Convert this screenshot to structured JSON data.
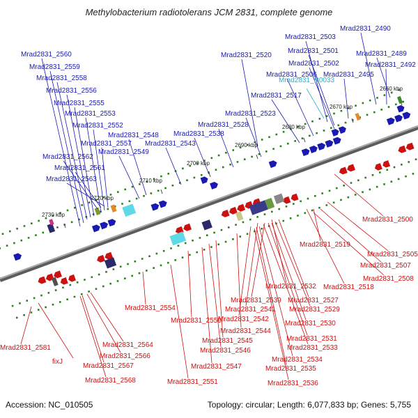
{
  "title": "Methylobacterium radiotolerans JCM 2831, complete genome",
  "footer": {
    "accession": "Accession: NC_010505",
    "summary": "Topology: circular; Length: 6,077,833 bp; Genes: 5,755"
  },
  "colors": {
    "backbone": "#7a7a7a",
    "forward": "#1a1ab0",
    "reverse": "#cc1111",
    "rna": "#2ab0d0",
    "gc_dots": "#2e7d1e"
  },
  "ticks": [
    "2660 kbp",
    "2670 kbp",
    "2680 kbp",
    "2690 kbp",
    "2700 kbp",
    "2710 kbp",
    "2720 kbp",
    "2730 kbp"
  ],
  "forward_labels": [
    "Mrad2831_2490",
    "Mrad2831_2503",
    "Mrad2831_2501",
    "Mrad2831_2489",
    "Mrad2831_2520",
    "Mrad2831_2502",
    "Mrad2831_2492",
    "Mrad2831_2506",
    "Mrad2831_2495",
    "Mrad2831_2517",
    "Mrad2831_2523",
    "Mrad2831_2528",
    "Mrad2831_2538",
    "Mrad2831_2543",
    "Mrad2831_2548",
    "Mrad2831_2549",
    "Mrad2831_2560",
    "Mrad2831_2559",
    "Mrad2831_2558",
    "Mrad2831_2556",
    "Mrad2831_2555",
    "Mrad2831_2553",
    "Mrad2831_2552",
    "Mrad2831_2557",
    "Mrad2831_2562",
    "Mrad2831_2561",
    "Mrad2831_2563"
  ],
  "rna_labels": [
    "Mrad2831_R0033"
  ],
  "reverse_labels": [
    "Mrad2831_2500",
    "Mrad2831_2519",
    "Mrad2831_2505",
    "Mrad2831_2507",
    "Mrad2831_2508",
    "Mrad2831_2518",
    "Mrad2831_2532",
    "Mrad2831_2539",
    "Mrad2831_2527",
    "Mrad2831_2541",
    "Mrad2831_2529",
    "Mrad2831_2542",
    "Mrad2831_2530",
    "Mrad2831_2554",
    "Mrad2831_2550",
    "Mrad2831_2544",
    "Mrad2831_2531",
    "Mrad2831_2545",
    "Mrad2831_2533",
    "Mrad2831_2546",
    "Mrad2831_2534",
    "Mrad2831_2547",
    "Mrad2831_2535",
    "Mrad2831_2551",
    "Mrad2831_2536",
    "Mrad2831_2564",
    "Mrad2831_2581",
    "Mrad2831_2566",
    "fixJ",
    "Mrad2831_2567",
    "Mrad2831_2568"
  ]
}
